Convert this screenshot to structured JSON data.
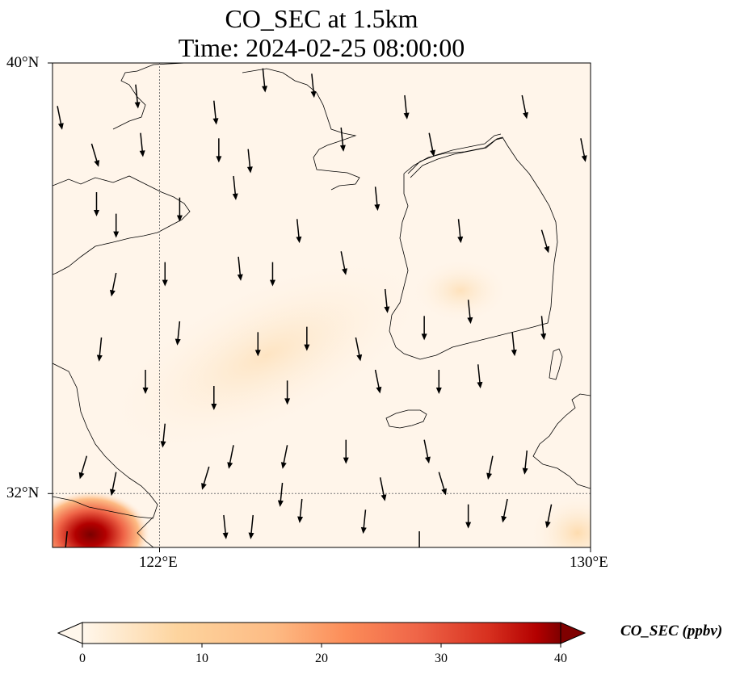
{
  "title": {
    "line1": "CO_SEC at 1.5km",
    "line2": "Time: 2024-02-25 08:00:00"
  },
  "map": {
    "extent": {
      "lon": [
        119,
        130
      ],
      "lat": [
        31,
        40
      ]
    },
    "gridlines": {
      "lon": [
        122
      ],
      "lat": [
        32
      ],
      "style": "dotted"
    },
    "lat_labels": [
      "40°N",
      "32°N"
    ],
    "lon_labels": [
      "122°E",
      "130°E"
    ],
    "colors": {
      "background": "#fff5ea",
      "coast": "#000000",
      "hotspot": "#800000"
    }
  },
  "colorbar": {
    "label": "CO_SEC (ppbv)",
    "ticks": [
      "0",
      "10",
      "20",
      "30",
      "40"
    ],
    "range": [
      0,
      40
    ],
    "colormap": "OrRd",
    "extend": "both"
  },
  "wind_vectors": [
    {
      "lon": 119.1,
      "lat": 39.2,
      "u": 0.2,
      "v": -1
    },
    {
      "lon": 120.7,
      "lat": 39.6,
      "u": 0.1,
      "v": -1
    },
    {
      "lon": 122.3,
      "lat": 39.3,
      "u": 0.1,
      "v": -1
    },
    {
      "lon": 123.3,
      "lat": 39.9,
      "u": 0.1,
      "v": -1
    },
    {
      "lon": 124.3,
      "lat": 39.8,
      "u": 0.1,
      "v": -1
    },
    {
      "lon": 126.2,
      "lat": 39.4,
      "u": 0.1,
      "v": -1
    },
    {
      "lon": 119.8,
      "lat": 38.5,
      "u": 0.3,
      "v": -1
    },
    {
      "lon": 120.8,
      "lat": 38.7,
      "u": 0.1,
      "v": -1
    },
    {
      "lon": 122.4,
      "lat": 38.6,
      "u": 0.0,
      "v": -1
    },
    {
      "lon": 123.0,
      "lat": 38.4,
      "u": 0.1,
      "v": -1
    },
    {
      "lon": 124.9,
      "lat": 38.8,
      "u": 0.1,
      "v": -1
    },
    {
      "lon": 126.7,
      "lat": 38.7,
      "u": 0.2,
      "v": -1
    },
    {
      "lon": 128.6,
      "lat": 39.4,
      "u": 0.2,
      "v": -1
    },
    {
      "lon": 129.8,
      "lat": 38.6,
      "u": 0.2,
      "v": -1
    },
    {
      "lon": 119.9,
      "lat": 37.6,
      "u": 0.0,
      "v": -1
    },
    {
      "lon": 120.3,
      "lat": 37.2,
      "u": 0.0,
      "v": -1
    },
    {
      "lon": 121.6,
      "lat": 37.5,
      "u": 0.0,
      "v": -1
    },
    {
      "lon": 122.7,
      "lat": 37.9,
      "u": 0.1,
      "v": -1
    },
    {
      "lon": 124.0,
      "lat": 37.1,
      "u": 0.1,
      "v": -1
    },
    {
      "lon": 125.6,
      "lat": 37.7,
      "u": 0.1,
      "v": -1
    },
    {
      "lon": 127.3,
      "lat": 37.1,
      "u": 0.1,
      "v": -1
    },
    {
      "lon": 129.0,
      "lat": 36.9,
      "u": 0.3,
      "v": -1
    },
    {
      "lon": 120.3,
      "lat": 36.1,
      "u": -0.2,
      "v": -1
    },
    {
      "lon": 121.3,
      "lat": 36.3,
      "u": 0.0,
      "v": -1
    },
    {
      "lon": 122.8,
      "lat": 36.4,
      "u": 0.1,
      "v": -1
    },
    {
      "lon": 123.5,
      "lat": 36.3,
      "u": 0.0,
      "v": -1
    },
    {
      "lon": 124.9,
      "lat": 36.5,
      "u": 0.2,
      "v": -1
    },
    {
      "lon": 125.8,
      "lat": 35.8,
      "u": 0.1,
      "v": -1
    },
    {
      "lon": 127.5,
      "lat": 35.6,
      "u": 0.1,
      "v": -1
    },
    {
      "lon": 129.0,
      "lat": 35.3,
      "u": 0.1,
      "v": -1
    },
    {
      "lon": 120.0,
      "lat": 34.9,
      "u": -0.1,
      "v": -1
    },
    {
      "lon": 121.6,
      "lat": 35.2,
      "u": -0.1,
      "v": -1
    },
    {
      "lon": 123.2,
      "lat": 35.0,
      "u": 0.0,
      "v": -1
    },
    {
      "lon": 124.2,
      "lat": 35.1,
      "u": 0.0,
      "v": -1
    },
    {
      "lon": 125.2,
      "lat": 34.9,
      "u": 0.2,
      "v": -1
    },
    {
      "lon": 126.6,
      "lat": 35.3,
      "u": 0.0,
      "v": -1
    },
    {
      "lon": 128.4,
      "lat": 35.0,
      "u": 0.1,
      "v": -1
    },
    {
      "lon": 120.9,
      "lat": 34.3,
      "u": 0.0,
      "v": -1
    },
    {
      "lon": 122.3,
      "lat": 34.0,
      "u": 0.0,
      "v": -1
    },
    {
      "lon": 123.8,
      "lat": 34.1,
      "u": 0.0,
      "v": -1
    },
    {
      "lon": 125.6,
      "lat": 34.3,
      "u": 0.2,
      "v": -1
    },
    {
      "lon": 126.9,
      "lat": 34.3,
      "u": 0.0,
      "v": -1
    },
    {
      "lon": 127.7,
      "lat": 34.4,
      "u": 0.1,
      "v": -1
    },
    {
      "lon": 121.3,
      "lat": 33.3,
      "u": -0.1,
      "v": -1
    },
    {
      "lon": 122.7,
      "lat": 32.9,
      "u": -0.2,
      "v": -1
    },
    {
      "lon": 123.8,
      "lat": 32.9,
      "u": -0.2,
      "v": -1
    },
    {
      "lon": 125.0,
      "lat": 33.0,
      "u": 0.0,
      "v": -1
    },
    {
      "lon": 126.6,
      "lat": 33.0,
      "u": 0.2,
      "v": -1
    },
    {
      "lon": 128.0,
      "lat": 32.7,
      "u": -0.2,
      "v": -1
    },
    {
      "lon": 128.7,
      "lat": 32.8,
      "u": -0.1,
      "v": -1
    },
    {
      "lon": 119.7,
      "lat": 32.7,
      "u": -0.3,
      "v": -1
    },
    {
      "lon": 120.3,
      "lat": 32.4,
      "u": -0.2,
      "v": -1
    },
    {
      "lon": 122.2,
      "lat": 32.5,
      "u": -0.3,
      "v": -1
    },
    {
      "lon": 123.7,
      "lat": 32.2,
      "u": -0.1,
      "v": -1
    },
    {
      "lon": 125.7,
      "lat": 32.3,
      "u": 0.2,
      "v": -1
    },
    {
      "lon": 126.9,
      "lat": 32.4,
      "u": 0.3,
      "v": -1
    },
    {
      "lon": 124.1,
      "lat": 31.9,
      "u": -0.1,
      "v": -1
    },
    {
      "lon": 125.4,
      "lat": 31.7,
      "u": -0.1,
      "v": -1
    },
    {
      "lon": 127.5,
      "lat": 31.8,
      "u": 0.0,
      "v": -1
    },
    {
      "lon": 128.3,
      "lat": 31.9,
      "u": -0.2,
      "v": -1
    },
    {
      "lon": 129.2,
      "lat": 31.8,
      "u": -0.2,
      "v": -1
    },
    {
      "lon": 122.5,
      "lat": 31.6,
      "u": 0.1,
      "v": -1
    },
    {
      "lon": 123.1,
      "lat": 31.6,
      "u": -0.1,
      "v": -1
    },
    {
      "lon": 126.5,
      "lat": 31.3,
      "u": 0.0,
      "v": -1
    },
    {
      "lon": 119.3,
      "lat": 31.3,
      "u": -0.1,
      "v": -1
    }
  ]
}
